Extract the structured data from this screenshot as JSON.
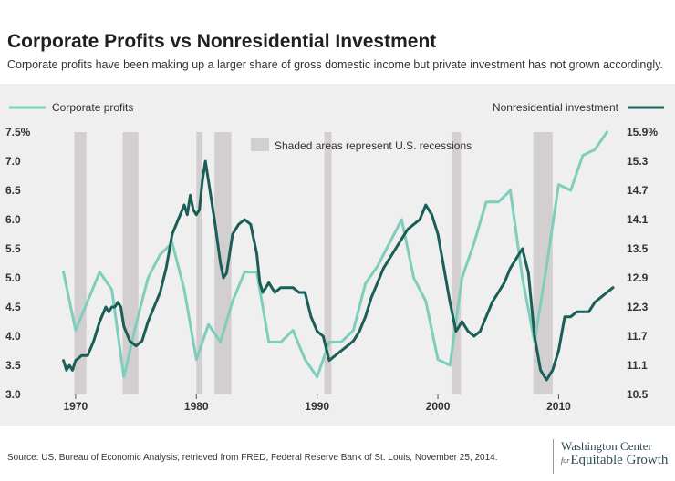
{
  "header": {
    "title": "Corporate Profits vs Nonresidential Investment",
    "subtitle": "Corporate profits have been making up a larger share of gross domestic income but private investment has not grown accordingly."
  },
  "footer": {
    "source": "Source: US. Bureau of Economic Analysis, retrieved from FRED, Federal Reserve Bank of St. Louis, November 25, 2014.",
    "brand_line1": "Washington Center",
    "brand_for": "for",
    "brand_line2": "Equitable Growth"
  },
  "colors": {
    "profits": "#7fcdbb",
    "investment": "#1b5e57",
    "recession": "#d3cfd0",
    "background": "#efefef"
  },
  "chart_data": {
    "type": "line",
    "legend_left": "Corporate profits",
    "legend_right": "Nonresidential investment",
    "legend_placement": "top",
    "recession_note": "Shaded areas represent U.S. recessions",
    "xlim": [
      1968.5,
      2014.8
    ],
    "x_ticks": [
      1970,
      1980,
      1990,
      2000,
      2010
    ],
    "y_left_lim": [
      3.0,
      7.5
    ],
    "y_left_ticks": [
      "3.0",
      "3.5",
      "4.0",
      "4.5",
      "5.0",
      "5.5",
      "6.0",
      "6.5",
      "7.0",
      "7.5%"
    ],
    "y_left_tick_values": [
      3.0,
      3.5,
      4.0,
      4.5,
      5.0,
      5.5,
      6.0,
      6.5,
      7.0,
      7.5
    ],
    "y_right_lim": [
      10.5,
      15.9
    ],
    "y_right_ticks": [
      "10.5",
      "11.1",
      "11.7",
      "12.3",
      "12.9",
      "13.5",
      "14.1",
      "14.7",
      "15.3",
      "15.9%"
    ],
    "y_right_tick_values": [
      10.5,
      11.1,
      11.7,
      12.3,
      12.9,
      13.5,
      14.1,
      14.7,
      15.3,
      15.9
    ],
    "grid": false,
    "recessions": [
      [
        1969.9,
        1970.9
      ],
      [
        1973.9,
        1975.2
      ],
      [
        1980.0,
        1980.5
      ],
      [
        1981.5,
        1982.9
      ],
      [
        1990.6,
        1991.2
      ],
      [
        2001.2,
        2001.9
      ],
      [
        2007.9,
        2009.5
      ]
    ],
    "series": [
      {
        "name": "Corporate profits",
        "axis": "left",
        "x": [
          1969,
          1970,
          1971,
          1972,
          1973,
          1974,
          1975,
          1976,
          1977,
          1978,
          1979,
          1980,
          1981,
          1982,
          1983,
          1984,
          1985,
          1986,
          1987,
          1988,
          1989,
          1990,
          1991,
          1992,
          1993,
          1994,
          1995,
          1996,
          1997,
          1998,
          1999,
          2000,
          2001,
          2002,
          2003,
          2004,
          2005,
          2006,
          2007,
          2008,
          2009,
          2010,
          2011,
          2012,
          2013,
          2014
        ],
        "y": [
          5.1,
          4.1,
          4.6,
          5.1,
          4.8,
          3.3,
          4.2,
          5.0,
          5.4,
          5.6,
          4.8,
          3.6,
          4.2,
          3.9,
          4.6,
          5.1,
          5.1,
          3.9,
          3.9,
          4.1,
          3.6,
          3.3,
          3.9,
          3.9,
          4.1,
          4.9,
          5.2,
          5.6,
          6.0,
          5.0,
          4.6,
          3.6,
          3.5,
          5.0,
          5.6,
          6.3,
          6.3,
          6.5,
          5.0,
          3.9,
          5.2,
          6.6,
          6.5,
          7.1,
          7.2,
          7.5
        ]
      },
      {
        "name": "Nonresidential investment",
        "axis": "right",
        "x": [
          1969.0,
          1969.25,
          1969.5,
          1969.75,
          1970.0,
          1970.5,
          1971.0,
          1971.5,
          1972.0,
          1972.5,
          1972.75,
          1973.0,
          1973.25,
          1973.5,
          1973.75,
          1974.0,
          1974.5,
          1975.0,
          1975.5,
          1976.0,
          1976.5,
          1977.0,
          1977.5,
          1978.0,
          1978.5,
          1979.0,
          1979.25,
          1979.5,
          1979.75,
          1980.0,
          1980.25,
          1980.5,
          1980.75,
          1981.0,
          1981.5,
          1982.0,
          1982.25,
          1982.5,
          1983.0,
          1983.5,
          1984.0,
          1984.5,
          1985.0,
          1985.25,
          1985.5,
          1986.0,
          1986.5,
          1987.0,
          1987.5,
          1988.0,
          1988.5,
          1989.0,
          1989.5,
          1990.0,
          1990.5,
          1991.0,
          1991.5,
          1992.0,
          1992.5,
          1993.0,
          1993.5,
          1994.0,
          1994.5,
          1995.0,
          1995.5,
          1996.0,
          1996.5,
          1997.0,
          1997.5,
          1998.0,
          1998.5,
          1999.0,
          1999.5,
          2000.0,
          2000.5,
          2001.0,
          2001.5,
          2002.0,
          2002.5,
          2003.0,
          2003.5,
          2004.0,
          2004.5,
          2005.0,
          2005.5,
          2006.0,
          2006.5,
          2007.0,
          2007.5,
          2008.0,
          2008.5,
          2009.0,
          2009.5,
          2010.0,
          2010.5,
          2011.0,
          2011.5,
          2012.0,
          2012.5,
          2013.0,
          2013.5,
          2014.0,
          2014.5
        ],
        "y": [
          11.2,
          11.0,
          11.1,
          11.0,
          11.2,
          11.3,
          11.3,
          11.6,
          12.0,
          12.3,
          12.2,
          12.3,
          12.3,
          12.4,
          12.3,
          11.9,
          11.6,
          11.5,
          11.6,
          12.0,
          12.3,
          12.6,
          13.1,
          13.8,
          14.1,
          14.4,
          14.2,
          14.6,
          14.3,
          14.2,
          14.3,
          14.9,
          15.3,
          14.9,
          14.1,
          13.2,
          12.9,
          13.0,
          13.8,
          14.0,
          14.1,
          14.0,
          13.4,
          12.8,
          12.6,
          12.8,
          12.6,
          12.7,
          12.7,
          12.7,
          12.6,
          12.6,
          12.1,
          11.8,
          11.7,
          11.2,
          11.3,
          11.4,
          11.5,
          11.6,
          11.8,
          12.1,
          12.5,
          12.8,
          13.1,
          13.3,
          13.5,
          13.7,
          13.9,
          14.0,
          14.1,
          14.4,
          14.2,
          13.8,
          13.1,
          12.4,
          11.8,
          12.0,
          11.8,
          11.7,
          11.8,
          12.1,
          12.4,
          12.6,
          12.8,
          13.1,
          13.3,
          13.5,
          13.0,
          11.7,
          11.0,
          10.8,
          11.0,
          11.4,
          12.1,
          12.1,
          12.2,
          12.2,
          12.2,
          12.4,
          12.5,
          12.6,
          12.7
        ]
      }
    ]
  }
}
